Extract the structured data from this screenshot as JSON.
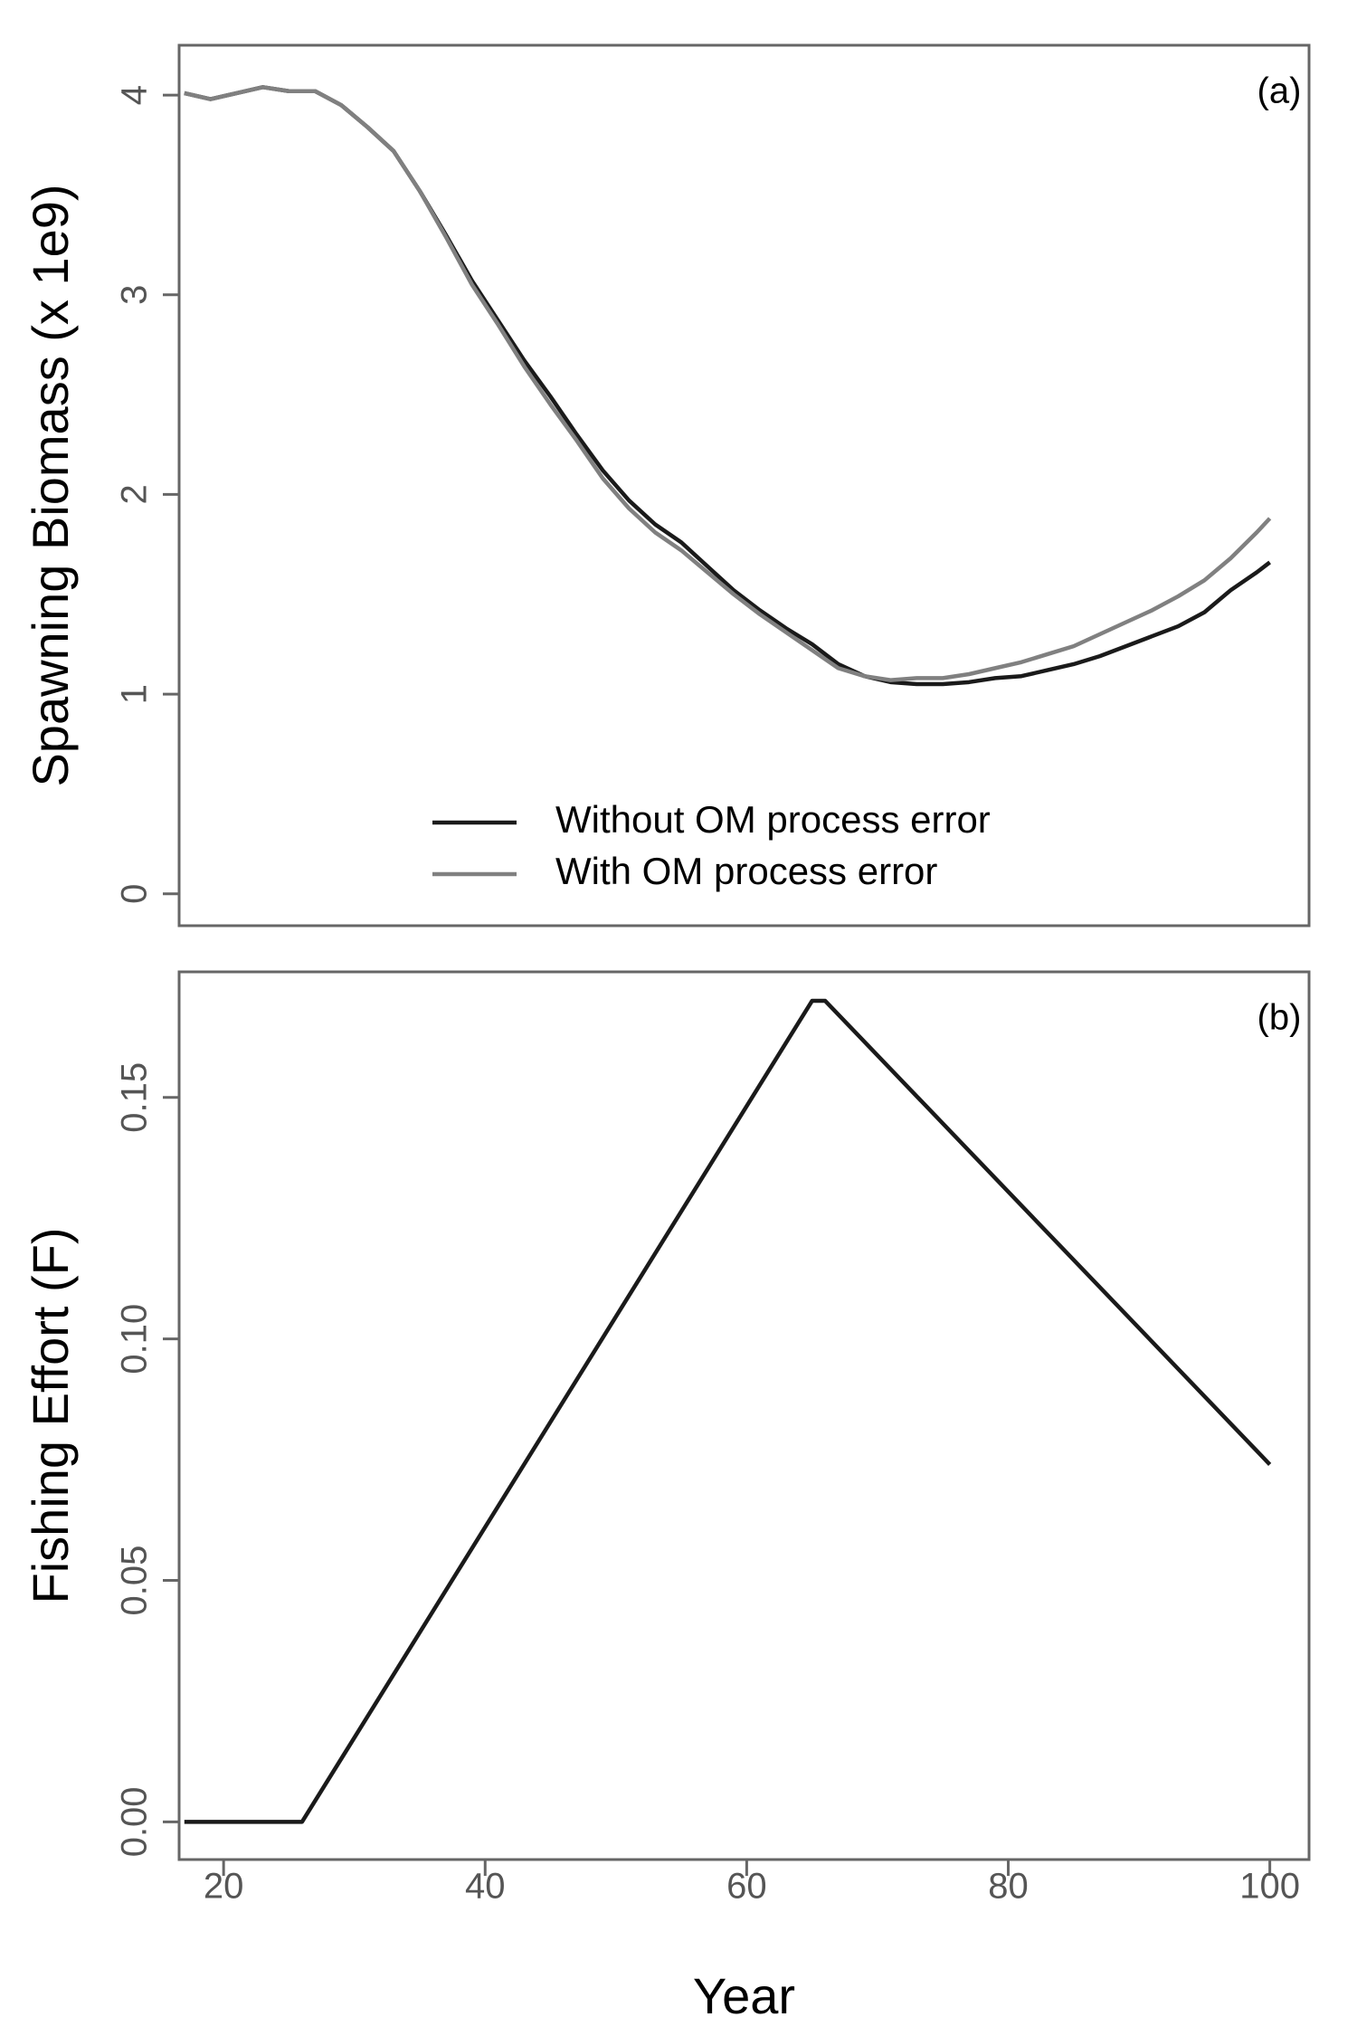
{
  "chart_data": [
    {
      "type": "line",
      "ylabel": "Spawning Biomass (x 1e9)",
      "annotation": "(a)",
      "x": [
        17,
        19,
        21,
        23,
        25,
        27,
        29,
        31,
        33,
        35,
        37,
        39,
        41,
        43,
        45,
        47,
        49,
        51,
        53,
        55,
        57,
        59,
        61,
        63,
        65,
        67,
        69,
        71,
        73,
        75,
        77,
        79,
        81,
        83,
        85,
        87,
        89,
        91,
        93,
        95,
        97,
        99,
        100
      ],
      "series": [
        {
          "name": "Without OM process error",
          "color": "#1a1a1a",
          "values": [
            4.01,
            3.98,
            4.01,
            4.04,
            4.02,
            4.02,
            3.95,
            3.84,
            3.72,
            3.52,
            3.3,
            3.07,
            2.87,
            2.67,
            2.49,
            2.3,
            2.12,
            1.97,
            1.85,
            1.76,
            1.64,
            1.52,
            1.42,
            1.33,
            1.25,
            1.15,
            1.09,
            1.06,
            1.05,
            1.05,
            1.06,
            1.08,
            1.09,
            1.12,
            1.15,
            1.19,
            1.24,
            1.29,
            1.34,
            1.41,
            1.52,
            1.61,
            1.66
          ]
        },
        {
          "name": "With OM process error",
          "color": "#808080",
          "values": [
            4.01,
            3.98,
            4.01,
            4.04,
            4.02,
            4.02,
            3.95,
            3.84,
            3.72,
            3.52,
            3.29,
            3.05,
            2.85,
            2.64,
            2.45,
            2.27,
            2.08,
            1.93,
            1.81,
            1.72,
            1.61,
            1.5,
            1.4,
            1.31,
            1.22,
            1.13,
            1.09,
            1.07,
            1.08,
            1.08,
            1.1,
            1.13,
            1.16,
            1.2,
            1.24,
            1.3,
            1.36,
            1.42,
            1.49,
            1.57,
            1.68,
            1.81,
            1.88
          ]
        }
      ],
      "xlim": [
        16.6,
        103
      ],
      "ylim": [
        -0.16,
        4.25
      ],
      "yticks": [
        0,
        1,
        2,
        3,
        4
      ],
      "legend": "bottom"
    },
    {
      "type": "line",
      "xlabel": "Year",
      "ylabel": "Fishing Effort (F)",
      "annotation": "(b)",
      "x": [
        17,
        26,
        65,
        66,
        100
      ],
      "values": [
        0,
        0,
        0.17,
        0.17,
        0.074
      ],
      "color": "#1a1a1a",
      "xlim": [
        16.6,
        103
      ],
      "ylim": [
        -0.0078,
        0.176
      ],
      "xticks": [
        20,
        40,
        60,
        80,
        100
      ],
      "yticks": [
        {
          "value": 0,
          "label": "0.00"
        },
        {
          "value": 0.05,
          "label": "0.05"
        },
        {
          "value": 0.1,
          "label": "0.10"
        },
        {
          "value": 0.15,
          "label": "0.15"
        }
      ]
    }
  ]
}
